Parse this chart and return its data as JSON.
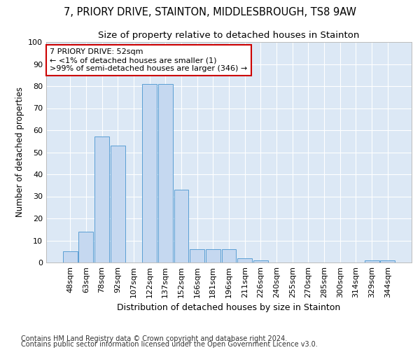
{
  "title1": "7, PRIORY DRIVE, STAINTON, MIDDLESBROUGH, TS8 9AW",
  "title2": "Size of property relative to detached houses in Stainton",
  "xlabel": "Distribution of detached houses by size in Stainton",
  "ylabel": "Number of detached properties",
  "categories": [
    "48sqm",
    "63sqm",
    "78sqm",
    "92sqm",
    "107sqm",
    "122sqm",
    "137sqm",
    "152sqm",
    "166sqm",
    "181sqm",
    "196sqm",
    "211sqm",
    "226sqm",
    "240sqm",
    "255sqm",
    "270sqm",
    "285sqm",
    "300sqm",
    "314sqm",
    "329sqm",
    "344sqm"
  ],
  "values": [
    5,
    14,
    57,
    53,
    0,
    81,
    81,
    33,
    6,
    6,
    6,
    2,
    1,
    0,
    0,
    0,
    0,
    0,
    0,
    1,
    1
  ],
  "bar_color": "#c5d8f0",
  "bar_edge_color": "#5a9fd4",
  "annotation_box_text": "7 PRIORY DRIVE: 52sqm\n← <1% of detached houses are smaller (1)\n>99% of semi-detached houses are larger (346) →",
  "annotation_box_color": "#ffffff",
  "annotation_box_edge_color": "#cc0000",
  "bg_color": "#dce8f5",
  "grid_color": "#ffffff",
  "footer1": "Contains HM Land Registry data © Crown copyright and database right 2024.",
  "footer2": "Contains public sector information licensed under the Open Government Licence v3.0.",
  "ylim": [
    0,
    100
  ],
  "yticks": [
    0,
    10,
    20,
    30,
    40,
    50,
    60,
    70,
    80,
    90,
    100
  ],
  "title1_fontsize": 10.5,
  "title2_fontsize": 9.5,
  "xlabel_fontsize": 9,
  "ylabel_fontsize": 8.5,
  "tick_fontsize": 8,
  "annot_fontsize": 8,
  "footer_fontsize": 7
}
